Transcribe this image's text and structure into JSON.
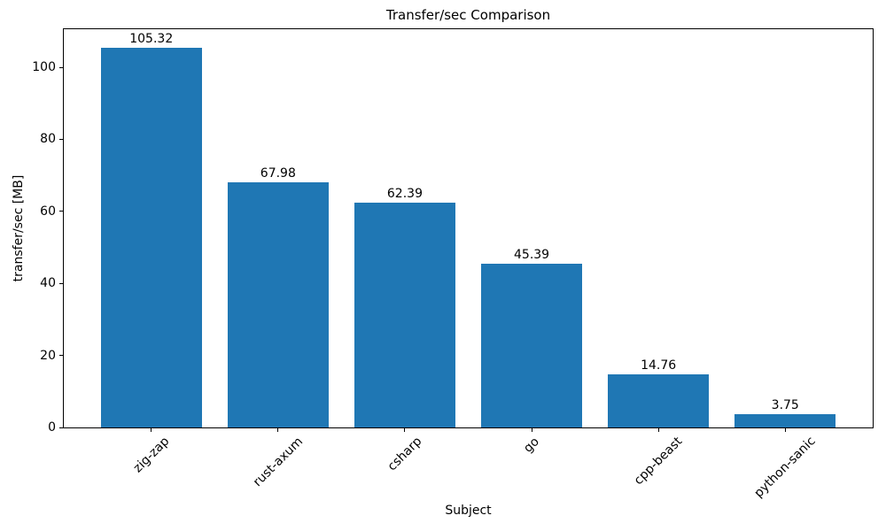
{
  "chart_data": {
    "type": "bar",
    "title": "Transfer/sec Comparison",
    "xlabel": "Subject",
    "ylabel": "transfer/sec [MB]",
    "categories": [
      "zig-zap",
      "rust-axum",
      "csharp",
      "go",
      "cpp-beast",
      "python-sanic"
    ],
    "values": [
      105.32,
      67.98,
      62.39,
      45.39,
      14.76,
      3.75
    ],
    "bar_labels": [
      "105.32",
      "67.98",
      "62.39",
      "45.39",
      "14.76",
      "3.75"
    ],
    "ylim": [
      0,
      110.59
    ],
    "yticks": [
      0,
      20,
      40,
      60,
      80,
      100
    ],
    "bar_color": "#1f77b4",
    "bar_width_fraction": 0.8,
    "x_tick_rotation_deg": 45,
    "grid": false,
    "legend_position": "none"
  }
}
